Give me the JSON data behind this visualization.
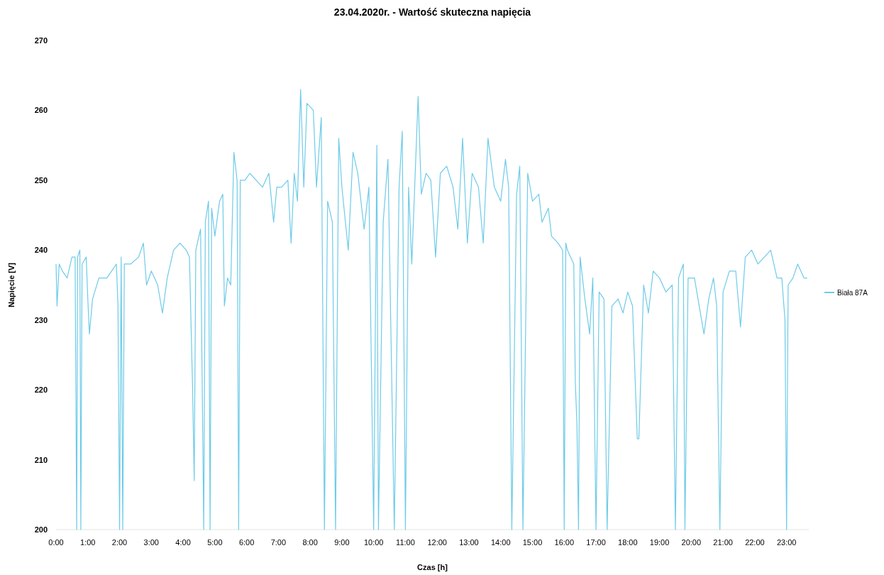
{
  "chart_data": {
    "type": "line",
    "title": "23.04.2020r. - Wartość skuteczna napięcia",
    "xlabel": "Czas [h]",
    "ylabel": "Napięcie [V]",
    "x": [
      0.0,
      0.03,
      0.1,
      0.2,
      0.35,
      0.5,
      0.6,
      0.65,
      0.68,
      0.75,
      0.78,
      0.82,
      0.95,
      1.0,
      1.05,
      1.15,
      1.35,
      1.6,
      1.75,
      1.9,
      1.95,
      2.0,
      2.05,
      2.1,
      2.15,
      2.35,
      2.6,
      2.75,
      2.85,
      3.0,
      3.2,
      3.35,
      3.5,
      3.7,
      3.9,
      4.1,
      4.2,
      4.3,
      4.35,
      4.4,
      4.55,
      4.65,
      4.7,
      4.8,
      4.85,
      4.9,
      5.0,
      5.15,
      5.25,
      5.3,
      5.4,
      5.5,
      5.6,
      5.7,
      5.75,
      5.8,
      5.95,
      6.1,
      6.3,
      6.5,
      6.7,
      6.85,
      6.95,
      7.1,
      7.3,
      7.4,
      7.5,
      7.6,
      7.7,
      7.8,
      7.9,
      8.1,
      8.2,
      8.35,
      8.45,
      8.55,
      8.7,
      8.8,
      8.9,
      9.0,
      9.2,
      9.35,
      9.5,
      9.7,
      9.85,
      10.0,
      10.1,
      10.15,
      10.3,
      10.45,
      10.65,
      10.8,
      10.9,
      11.0,
      11.1,
      11.2,
      11.4,
      11.5,
      11.65,
      11.8,
      11.95,
      12.1,
      12.3,
      12.5,
      12.65,
      12.8,
      12.95,
      13.1,
      13.3,
      13.45,
      13.6,
      13.8,
      14.0,
      14.15,
      14.25,
      14.35,
      14.5,
      14.6,
      14.7,
      14.85,
      15.0,
      15.2,
      15.3,
      15.5,
      15.6,
      15.8,
      15.95,
      16.0,
      16.05,
      16.1,
      16.3,
      16.35,
      16.4,
      16.45,
      16.5,
      16.65,
      16.8,
      16.9,
      17.0,
      17.1,
      17.25,
      17.35,
      17.5,
      17.7,
      17.85,
      18.0,
      18.15,
      18.3,
      18.35,
      18.5,
      18.65,
      18.8,
      19.0,
      19.2,
      19.4,
      19.5,
      19.6,
      19.75,
      19.8,
      19.9,
      20.1,
      20.25,
      20.4,
      20.55,
      20.7,
      20.8,
      20.9,
      21.0,
      21.2,
      21.4,
      21.55,
      21.7,
      21.9,
      22.1,
      22.3,
      22.5,
      22.7,
      22.85,
      22.95,
      23.0,
      23.05,
      23.2,
      23.35,
      23.55,
      23.65
    ],
    "series": [
      {
        "name": "Biała 87A",
        "color": "#6ecbe8",
        "values": [
          238,
          232,
          238,
          237,
          236,
          239,
          239,
          200,
          239,
          240,
          200,
          238,
          239,
          233,
          228,
          233,
          236,
          236,
          237,
          238,
          232,
          200,
          239,
          200,
          238,
          238,
          239,
          241,
          235,
          237,
          235,
          231,
          236,
          240,
          241,
          240,
          239,
          220,
          207,
          240,
          243,
          200,
          244,
          247,
          200,
          246,
          242,
          247,
          248,
          232,
          236,
          235,
          254,
          250,
          200,
          250,
          250,
          251,
          250,
          249,
          251,
          244,
          249,
          249,
          250,
          241,
          251,
          247,
          263,
          249,
          261,
          260,
          249,
          259,
          200,
          247,
          244,
          200,
          256,
          249,
          240,
          254,
          251,
          243,
          249,
          200,
          255,
          200,
          244,
          253,
          200,
          249,
          257,
          200,
          249,
          238,
          262,
          248,
          251,
          250,
          239,
          251,
          252,
          249,
          243,
          256,
          241,
          251,
          249,
          241,
          256,
          249,
          247,
          253,
          249,
          200,
          248,
          252,
          200,
          251,
          247,
          248,
          244,
          246,
          242,
          241,
          240,
          200,
          241,
          240,
          238,
          221,
          215,
          200,
          239,
          233,
          228,
          236,
          200,
          234,
          233,
          200,
          232,
          233,
          231,
          234,
          232,
          213,
          213,
          235,
          231,
          237,
          236,
          234,
          235,
          200,
          236,
          238,
          200,
          236,
          236,
          232,
          228,
          233,
          236,
          232,
          200,
          234,
          237,
          237,
          229,
          239,
          240,
          238,
          239,
          240,
          236,
          236,
          230,
          200,
          235,
          236,
          238,
          236,
          236
        ]
      }
    ],
    "xlim": [
      0,
      23.7
    ],
    "ylim": [
      200,
      270
    ],
    "xticks": [
      {
        "value": 0,
        "label": "0:00"
      },
      {
        "value": 1,
        "label": "1:00"
      },
      {
        "value": 2,
        "label": "2:00"
      },
      {
        "value": 3,
        "label": "3:00"
      },
      {
        "value": 4,
        "label": "4:00"
      },
      {
        "value": 5,
        "label": "5:00"
      },
      {
        "value": 6,
        "label": "6:00"
      },
      {
        "value": 7,
        "label": "7:00"
      },
      {
        "value": 8,
        "label": "8:00"
      },
      {
        "value": 9,
        "label": "9:00"
      },
      {
        "value": 10,
        "label": "10:00"
      },
      {
        "value": 11,
        "label": "11:00"
      },
      {
        "value": 12,
        "label": "12:00"
      },
      {
        "value": 13,
        "label": "13:00"
      },
      {
        "value": 14,
        "label": "14:00"
      },
      {
        "value": 15,
        "label": "15:00"
      },
      {
        "value": 16,
        "label": "16:00"
      },
      {
        "value": 17,
        "label": "17:00"
      },
      {
        "value": 18,
        "label": "18:00"
      },
      {
        "value": 19,
        "label": "19:00"
      },
      {
        "value": 20,
        "label": "20:00"
      },
      {
        "value": 21,
        "label": "21:00"
      },
      {
        "value": 22,
        "label": "22:00"
      },
      {
        "value": 23,
        "label": "23:00"
      }
    ],
    "yticks": [
      200,
      210,
      220,
      230,
      240,
      250,
      260,
      270
    ],
    "legend": "right",
    "line_style": "solid"
  }
}
